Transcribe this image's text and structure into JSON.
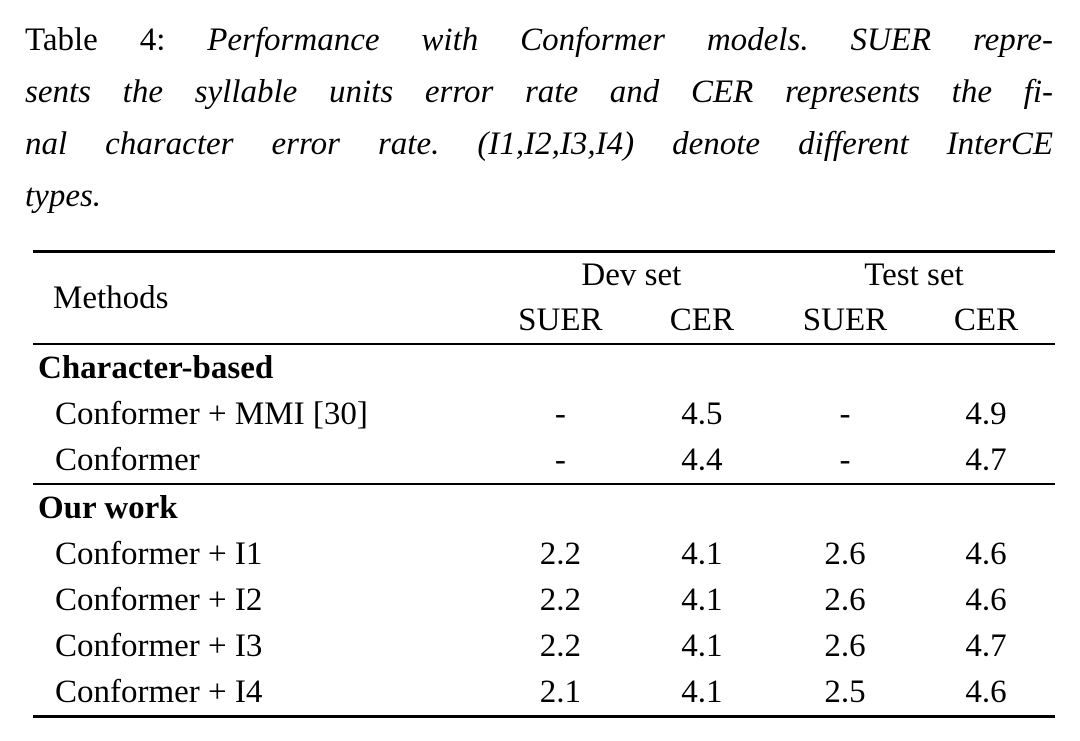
{
  "caption": {
    "label": "Table 4:",
    "lines": [
      "Performance with Conformer models.  SUER repre-",
      "sents the syllable units error rate and CER represents the fi-",
      "nal character error rate. (I1,I2,I3,I4) denote different InterCE",
      "types."
    ]
  },
  "table": {
    "methods_header": "Methods",
    "groups": {
      "dev": "Dev set",
      "test": "Test set"
    },
    "col_headers": [
      "SUER",
      "CER",
      "SUER",
      "CER"
    ],
    "sections": [
      {
        "title": "Character-based",
        "rows": [
          {
            "method": "Conformer + MMI [30]",
            "values": [
              "-",
              "4.5",
              "-",
              "4.9"
            ]
          },
          {
            "method": "Conformer",
            "values": [
              "-",
              "4.4",
              "-",
              "4.7"
            ]
          }
        ]
      },
      {
        "title": "Our work",
        "rows": [
          {
            "method": "Conformer + I1",
            "values": [
              "2.2",
              "4.1",
              "2.6",
              "4.6"
            ]
          },
          {
            "method": "Conformer + I2",
            "values": [
              "2.2",
              "4.1",
              "2.6",
              "4.6"
            ]
          },
          {
            "method": "Conformer + I3",
            "values": [
              "2.2",
              "4.1",
              "2.6",
              "4.7"
            ]
          },
          {
            "method": "Conformer + I4",
            "values": [
              "2.1",
              "4.1",
              "2.5",
              "4.6"
            ],
            "bold_method": true,
            "bold_values": [
              false,
              true,
              false,
              true
            ]
          }
        ]
      }
    ],
    "colors": {
      "text": "#000000",
      "background": "#ffffff",
      "rule": "#000000"
    }
  }
}
